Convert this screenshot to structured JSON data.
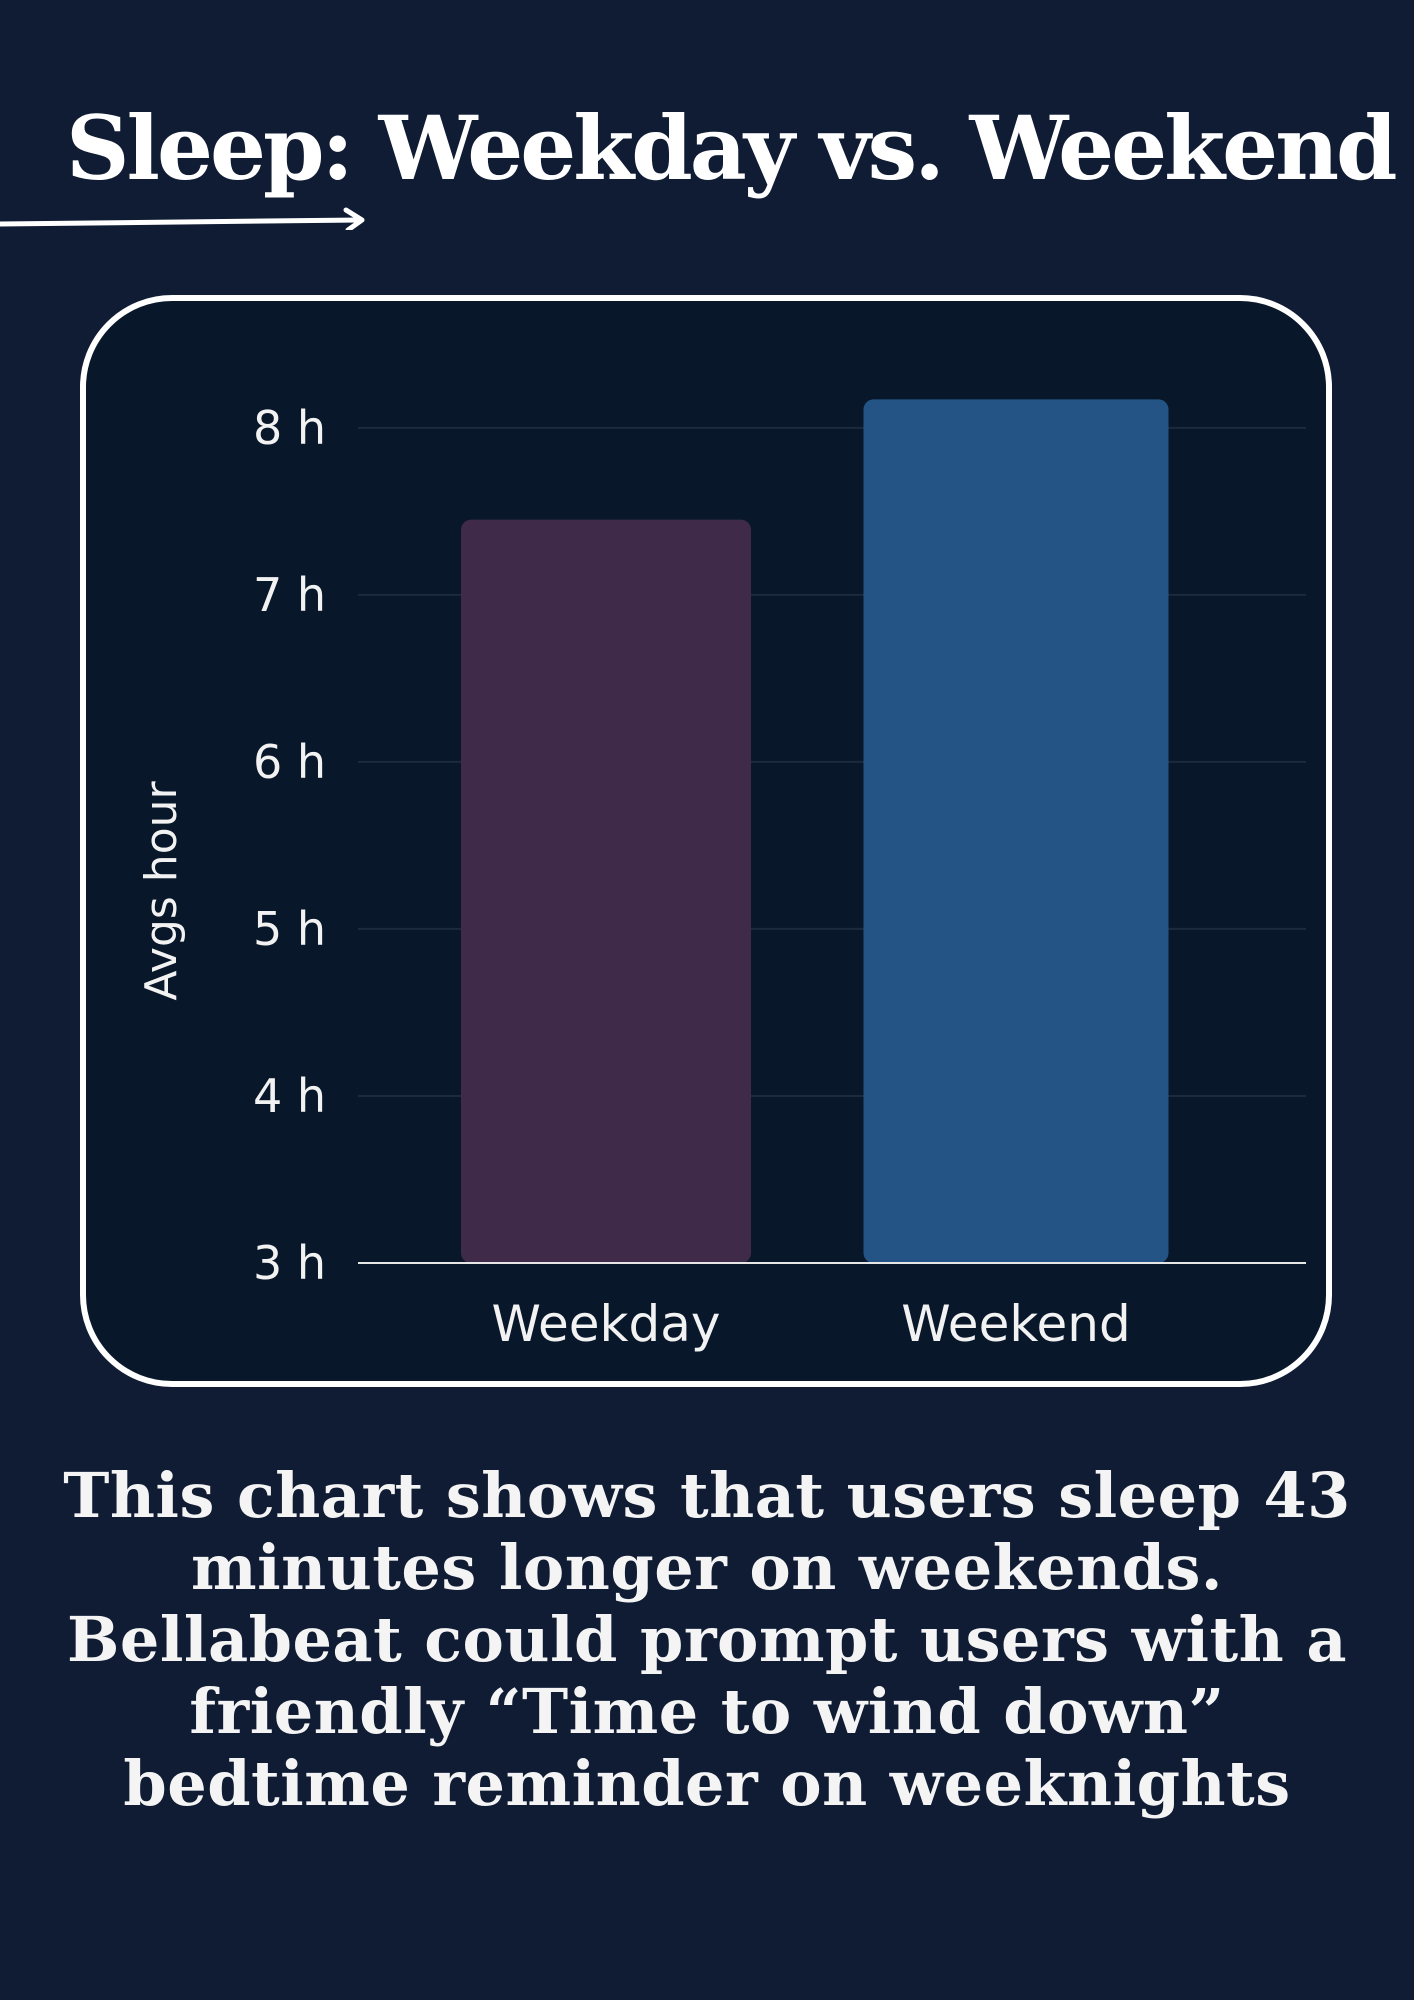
{
  "title": "Sleep: Weekday vs. Weekend",
  "caption": "This chart shows that users sleep 43 minutes longer on weekends. Bellabeat could prompt users with a friendly “Time to wind down” bedtime reminder on weeknights",
  "colors": {
    "background": "#101c34",
    "card": "#08172a",
    "weekday_bar": "#3f2b49",
    "weekend_bar": "#245485"
  },
  "chart_data": {
    "type": "bar",
    "categories": [
      "Weekday",
      "Weekend"
    ],
    "values": [
      7.45,
      8.17
    ],
    "ylabel": "Avgs hour",
    "ylim": [
      3,
      8.4
    ],
    "yticks": [
      3,
      4,
      5,
      6,
      7,
      8
    ],
    "ytick_labels": [
      "3 h",
      "4 h",
      "5 h",
      "6 h",
      "7 h",
      "8 h"
    ],
    "bar_colors": [
      "#3f2b49",
      "#245485"
    ],
    "grid": true
  }
}
